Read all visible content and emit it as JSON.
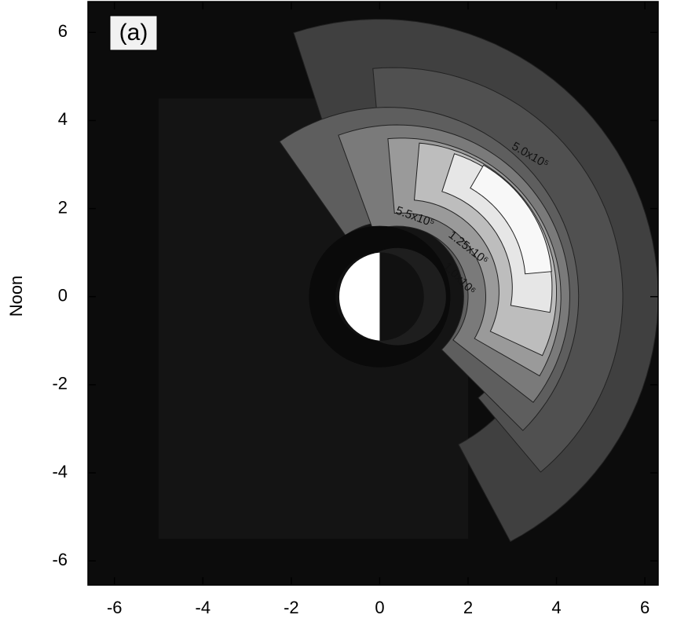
{
  "chart_data": {
    "type": "contour",
    "panel_label": "(a)",
    "y_label": "Noon",
    "xlim": [
      -6.6,
      6.3
    ],
    "ylim": [
      -6.55,
      6.7
    ],
    "xticks": [
      -6,
      -4,
      -2,
      0,
      2,
      4,
      6
    ],
    "yticks": [
      -6,
      -4,
      -2,
      0,
      2,
      4,
      6
    ],
    "contour_labels": [
      "1.25x10⁶",
      "1.0x10⁶",
      "5.5x10⁵",
      "5.0x10⁵"
    ]
  }
}
